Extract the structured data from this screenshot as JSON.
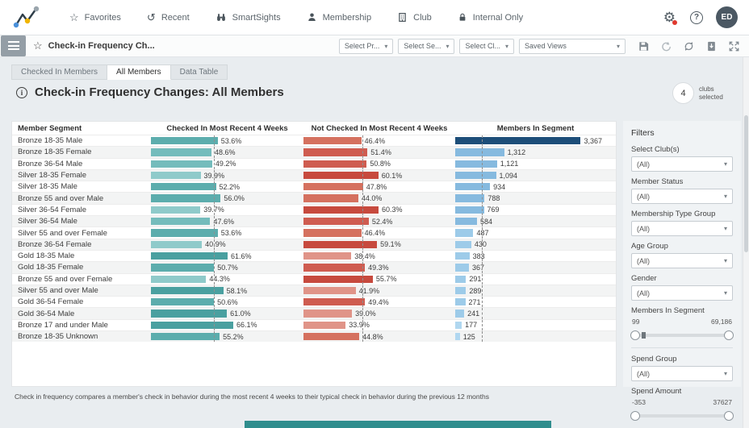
{
  "topnav": {
    "items": [
      {
        "icon": "star-icon",
        "label": "Favorites"
      },
      {
        "icon": "history-icon",
        "label": "Recent"
      },
      {
        "icon": "binoculars-icon",
        "label": "SmartSights"
      },
      {
        "icon": "person-icon",
        "label": "Membership"
      },
      {
        "icon": "building-icon",
        "label": "Club"
      },
      {
        "icon": "lock-icon",
        "label": "Internal Only"
      }
    ],
    "avatar_initials": "ED"
  },
  "toolbar": {
    "report_title": "Check-in Frequency Ch...",
    "selects": [
      "Select Pr...",
      "Select Se...",
      "Select Cl..."
    ],
    "saved_views_label": "Saved Views",
    "icons": [
      "save-icon",
      "undo-icon",
      "refresh-icon",
      "export-icon",
      "fullscreen-icon"
    ]
  },
  "tabs": {
    "items": [
      "Checked In Members",
      "All Members",
      "Data Table"
    ],
    "active": "All Members"
  },
  "page": {
    "title": "Check-in Frequency Changes: All Members",
    "clubs_count": "4",
    "clubs_label_line1": "clubs",
    "clubs_label_line2": "selected"
  },
  "chart_data": {
    "type": "bar",
    "columns": [
      "Member Segment",
      "Checked In Most Recent 4 Weeks",
      "Not Checked In Most Recent 4 Weeks",
      "Members In Segment"
    ],
    "checked_axis_max": 70,
    "not_checked_axis_max": 70,
    "members_axis_max": 3400,
    "checked_ref_line": 50.5,
    "not_checked_ref_line": 47.0,
    "members_ref_line": 712,
    "rows": [
      {
        "segment": "Bronze 18-35 Male",
        "checked": 53.6,
        "not_checked": 46.4,
        "members": 3367,
        "members_label": "3,367"
      },
      {
        "segment": "Bronze 18-35 Female",
        "checked": 48.6,
        "not_checked": 51.4,
        "members": 1312,
        "members_label": "1,312"
      },
      {
        "segment": "Bronze 36-54 Male",
        "checked": 49.2,
        "not_checked": 50.8,
        "members": 1121,
        "members_label": "1,121"
      },
      {
        "segment": "Silver 18-35 Female",
        "checked": 39.9,
        "not_checked": 60.1,
        "members": 1094,
        "members_label": "1,094"
      },
      {
        "segment": "Silver 18-35 Male",
        "checked": 52.2,
        "not_checked": 47.8,
        "members": 934,
        "members_label": "934"
      },
      {
        "segment": "Bronze 55 and over Male",
        "checked": 56.0,
        "not_checked": 44.0,
        "members": 788,
        "members_label": "788"
      },
      {
        "segment": "Silver 36-54 Female",
        "checked": 39.7,
        "not_checked": 60.3,
        "members": 769,
        "members_label": "769"
      },
      {
        "segment": "Silver 36-54 Male",
        "checked": 47.6,
        "not_checked": 52.4,
        "members": 584,
        "members_label": "584"
      },
      {
        "segment": "Silver 55 and over Female",
        "checked": 53.6,
        "not_checked": 46.4,
        "members": 487,
        "members_label": "487"
      },
      {
        "segment": "Bronze 36-54 Female",
        "checked": 40.9,
        "not_checked": 59.1,
        "members": 430,
        "members_label": "430"
      },
      {
        "segment": "Gold 18-35 Male",
        "checked": 61.6,
        "not_checked": 38.4,
        "members": 383,
        "members_label": "383"
      },
      {
        "segment": "Gold 18-35 Female",
        "checked": 50.7,
        "not_checked": 49.3,
        "members": 367,
        "members_label": "367"
      },
      {
        "segment": "Bronze 55 and over Female",
        "checked": 44.3,
        "not_checked": 55.7,
        "members": 291,
        "members_label": "291"
      },
      {
        "segment": "Silver 55 and over Male",
        "checked": 58.1,
        "not_checked": 41.9,
        "members": 289,
        "members_label": "289"
      },
      {
        "segment": "Gold 36-54 Female",
        "checked": 50.6,
        "not_checked": 49.4,
        "members": 271,
        "members_label": "271"
      },
      {
        "segment": "Gold 36-54 Male",
        "checked": 61.0,
        "not_checked": 39.0,
        "members": 241,
        "members_label": "241"
      },
      {
        "segment": "Bronze 17 and under Male",
        "checked": 66.1,
        "not_checked": 33.9,
        "members": 177,
        "members_label": "177"
      },
      {
        "segment": "Bronze 18-35 Unknown",
        "checked": 55.2,
        "not_checked": 44.8,
        "members": 125,
        "members_label": "125"
      }
    ]
  },
  "filters": {
    "heading": "Filters",
    "dropdowns": [
      {
        "label": "Select Club(s)",
        "value": "(All)"
      },
      {
        "label": "Member Status",
        "value": "(All)"
      },
      {
        "label": "Membership Type Group",
        "value": "(All)"
      },
      {
        "label": "Age Group",
        "value": "(All)"
      },
      {
        "label": "Gender",
        "value": "(All)"
      }
    ],
    "members_slider": {
      "label": "Members In Segment",
      "min": "99",
      "max": "69,186"
    },
    "spend_group": {
      "label": "Spend Group",
      "value": "(All)"
    },
    "spend_slider": {
      "label": "Spend Amount",
      "min": "-353",
      "max": "37627"
    }
  },
  "footnote": "Check in frequency compares a member's check in behavior during the most recent 4 weeks to their typical check in behavior during the previous 12 months",
  "colors": {
    "teal_dark": "#4aa0a0",
    "teal_mid": "#5cadad",
    "teal_soft": "#74bcbc",
    "teal_light": "#8fcaca",
    "red_dark": "#c74a3e",
    "red_mid": "#cf5c50",
    "red_soft": "#d5715f",
    "red_light": "#e09488",
    "navy": "#1d4e79",
    "blue_mid": "#86badf",
    "blue_soft": "#9dcbe9",
    "blue_light": "#b0d7f0",
    "accent_teal": "#2f8d8d"
  }
}
